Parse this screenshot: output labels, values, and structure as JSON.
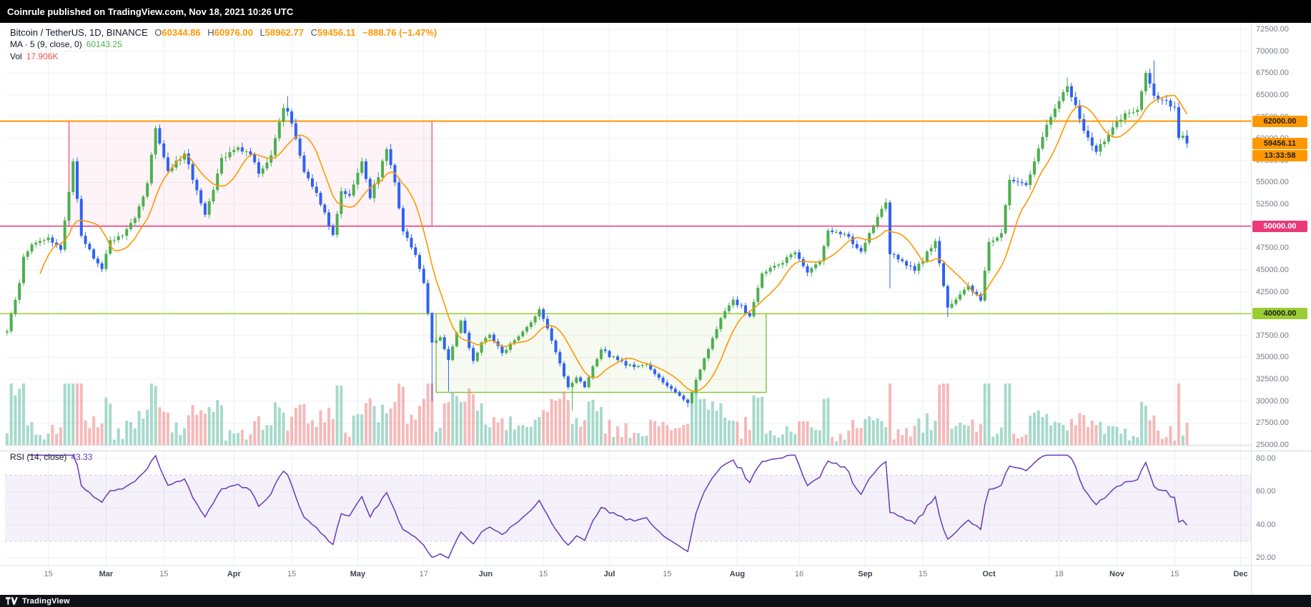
{
  "header": {
    "publish_text": "Coinrule published on TradingView.com, Nov 18, 2021 10:26 UTC"
  },
  "footer": {
    "brand": "TradingView"
  },
  "legend": {
    "symbol": "Bitcoin / TetherUS, 1D, BINANCE",
    "o_label": "O",
    "o_value": "60344.86",
    "h_label": "H",
    "h_value": "60976.00",
    "l_label": "L",
    "l_value": "58962.77",
    "c_label": "C",
    "c_value": "59456.11",
    "change": "−888.76 (−1.47%)",
    "ma_label": "MA · 5 (9, close, 0)",
    "ma_value": "60143.25",
    "vol_label": "Vol",
    "vol_value": "17.906K",
    "rsi_label": "RSI (14, close)",
    "rsi_value": "43.33"
  },
  "price_axis": {
    "ticks": [
      {
        "text": "72500.00",
        "price": 72500
      },
      {
        "text": "70000.00",
        "price": 70000
      },
      {
        "text": "67500.00",
        "price": 67500
      },
      {
        "text": "65000.00",
        "price": 65000
      },
      {
        "text": "62500.00",
        "price": 62500
      },
      {
        "text": "60000.00",
        "price": 60000
      },
      {
        "text": "57500.00",
        "price": 57500
      },
      {
        "text": "55000.00",
        "price": 55000
      },
      {
        "text": "52500.00",
        "price": 52500
      },
      {
        "text": "50000.00",
        "price": 50000
      },
      {
        "text": "47500.00",
        "price": 47500
      },
      {
        "text": "45000.00",
        "price": 45000
      },
      {
        "text": "42500.00",
        "price": 42500
      },
      {
        "text": "40000.00",
        "price": 40000
      },
      {
        "text": "37500.00",
        "price": 37500
      },
      {
        "text": "35000.00",
        "price": 35000
      },
      {
        "text": "32500.00",
        "price": 32500
      },
      {
        "text": "30000.00",
        "price": 30000
      },
      {
        "text": "27500.00",
        "price": 27500
      },
      {
        "text": "25000.00",
        "price": 25000
      }
    ],
    "badges": [
      {
        "text": "62000.00",
        "price": 62000,
        "bg": "#ff9800",
        "fg": "#1e1e1e"
      },
      {
        "text": "59456.11",
        "price": 59456.11,
        "bg": "#ff9800",
        "fg": "#1e1e1e",
        "countdown": "13:33:58"
      },
      {
        "text": "50000.00",
        "price": 50000,
        "bg": "#ea3979",
        "fg": "#ffffff"
      },
      {
        "text": "40000.00",
        "price": 40000,
        "bg": "#9acd32",
        "fg": "#1e1e1e"
      }
    ]
  },
  "rsi_axis": {
    "ticks": [
      {
        "text": "80.00",
        "value": 80
      },
      {
        "text": "60.00",
        "value": 60
      },
      {
        "text": "40.00",
        "value": 40
      },
      {
        "text": "20.00",
        "value": 20
      }
    ]
  },
  "time_axis": {
    "labels": [
      {
        "text": "15",
        "day": 10,
        "month": false
      },
      {
        "text": "Mar",
        "day": 24,
        "month": true
      },
      {
        "text": "15",
        "day": 38,
        "month": false
      },
      {
        "text": "Apr",
        "day": 55,
        "month": true
      },
      {
        "text": "15",
        "day": 69,
        "month": false
      },
      {
        "text": "May",
        "day": 85,
        "month": true
      },
      {
        "text": "17",
        "day": 101,
        "month": false
      },
      {
        "text": "Jun",
        "day": 116,
        "month": true
      },
      {
        "text": "15",
        "day": 130,
        "month": false
      },
      {
        "text": "Jul",
        "day": 146,
        "month": true
      },
      {
        "text": "15",
        "day": 160,
        "month": false
      },
      {
        "text": "Aug",
        "day": 177,
        "month": true
      },
      {
        "text": "16",
        "day": 192,
        "month": false
      },
      {
        "text": "Sep",
        "day": 208,
        "month": true
      },
      {
        "text": "15",
        "day": 222,
        "month": false
      },
      {
        "text": "Oct",
        "day": 238,
        "month": true
      },
      {
        "text": "18",
        "day": 255,
        "month": false
      },
      {
        "text": "Nov",
        "day": 269,
        "month": true
      },
      {
        "text": "15",
        "day": 283,
        "month": false
      },
      {
        "text": "Dec",
        "day": 299,
        "month": true
      }
    ]
  },
  "chart_data": {
    "type": "candlestick",
    "title": "Bitcoin / TetherUS, 1D, BINANCE",
    "interval": "1D",
    "exchange": "BINANCE",
    "price_range": [
      25000,
      72500
    ],
    "grid_step": 2500,
    "days_domain": [
      0,
      302
    ],
    "candle_count": 287,
    "up_color": "#4caf50",
    "down_color": "#2e62f4",
    "ma_color": "#ff9800",
    "vol_up_color": "rgba(109,194,168,0.6)",
    "vol_down_color": "rgba(240,139,139,0.6)",
    "rsi_color": "#673ab7",
    "rsi_band": [
      30,
      70
    ],
    "rsi_axis_range": [
      20,
      80
    ],
    "rsi_last": 43.33,
    "ma_period": 9,
    "rsi_period": 14,
    "levels": [
      {
        "price": 62000,
        "color": "#ff9800",
        "width": 2
      },
      {
        "price": 50000,
        "color": "#ea3979",
        "width": 1.5
      },
      {
        "price": 40000,
        "color": "#9acd32",
        "width": 1.5
      }
    ],
    "zones": [
      {
        "from_day": 15,
        "to_day": 103,
        "price_top": 62000,
        "price_bottom": 50000,
        "stroke": "#f06292",
        "fill": "rgba(240,98,146,0.07)"
      },
      {
        "from_day": 104,
        "to_day": 184,
        "price_top": 40000,
        "price_bottom": 31000,
        "stroke": "#8bc34a",
        "fill": "rgba(139,195,74,0.08)"
      }
    ],
    "close_keypoints": [
      [
        0,
        38000
      ],
      [
        3,
        43500
      ],
      [
        4,
        46500
      ],
      [
        6,
        47900
      ],
      [
        10,
        48700
      ],
      [
        13,
        47300
      ],
      [
        16,
        57400
      ],
      [
        18,
        48900
      ],
      [
        21,
        46300
      ],
      [
        23,
        45100
      ],
      [
        25,
        48400
      ],
      [
        28,
        48900
      ],
      [
        31,
        50900
      ],
      [
        34,
        54900
      ],
      [
        36,
        61200
      ],
      [
        39,
        56300
      ],
      [
        43,
        58300
      ],
      [
        46,
        54100
      ],
      [
        48,
        51300
      ],
      [
        52,
        57800
      ],
      [
        56,
        59000
      ],
      [
        59,
        58200
      ],
      [
        61,
        56000
      ],
      [
        64,
        58100
      ],
      [
        67,
        63500
      ],
      [
        68,
        63100
      ],
      [
        70,
        60000
      ],
      [
        72,
        56200
      ],
      [
        75,
        53800
      ],
      [
        79,
        49000
      ],
      [
        81,
        54000
      ],
      [
        83,
        53500
      ],
      [
        86,
        57400
      ],
      [
        88,
        53200
      ],
      [
        92,
        58800
      ],
      [
        94,
        55000
      ],
      [
        96,
        49400
      ],
      [
        99,
        46700
      ],
      [
        101,
        43500
      ],
      [
        103,
        36700
      ],
      [
        105,
        37300
      ],
      [
        107,
        34700
      ],
      [
        110,
        39200
      ],
      [
        113,
        34600
      ],
      [
        115,
        36700
      ],
      [
        117,
        37600
      ],
      [
        120,
        35500
      ],
      [
        124,
        37400
      ],
      [
        127,
        39000
      ],
      [
        129,
        40500
      ],
      [
        133,
        35600
      ],
      [
        136,
        31600
      ],
      [
        138,
        32700
      ],
      [
        140,
        31600
      ],
      [
        144,
        35900
      ],
      [
        148,
        34700
      ],
      [
        152,
        33900
      ],
      [
        155,
        34200
      ],
      [
        157,
        33100
      ],
      [
        161,
        31400
      ],
      [
        165,
        29800
      ],
      [
        168,
        33600
      ],
      [
        171,
        37200
      ],
      [
        173,
        39500
      ],
      [
        176,
        41600
      ],
      [
        180,
        39700
      ],
      [
        183,
        44600
      ],
      [
        187,
        45600
      ],
      [
        191,
        47000
      ],
      [
        194,
        44700
      ],
      [
        197,
        46000
      ],
      [
        199,
        49500
      ],
      [
        203,
        49100
      ],
      [
        207,
        47100
      ],
      [
        210,
        50000
      ],
      [
        213,
        52700
      ],
      [
        214,
        46800
      ],
      [
        217,
        46000
      ],
      [
        220,
        44900
      ],
      [
        225,
        48300
      ],
      [
        228,
        40700
      ],
      [
        231,
        42200
      ],
      [
        233,
        43200
      ],
      [
        236,
        41500
      ],
      [
        238,
        48200
      ],
      [
        241,
        49200
      ],
      [
        243,
        55300
      ],
      [
        247,
        54700
      ],
      [
        249,
        57400
      ],
      [
        252,
        61600
      ],
      [
        255,
        64300
      ],
      [
        257,
        66000
      ],
      [
        261,
        60900
      ],
      [
        264,
        58500
      ],
      [
        268,
        61300
      ],
      [
        271,
        62900
      ],
      [
        274,
        63300
      ],
      [
        276,
        67500
      ],
      [
        278,
        64900
      ],
      [
        280,
        64400
      ],
      [
        283,
        63600
      ],
      [
        284,
        60100
      ],
      [
        285,
        60344.86
      ],
      [
        286,
        59456.11
      ]
    ],
    "wick_lows": [
      {
        "day": 103,
        "low": 30000
      },
      {
        "day": 107,
        "low": 31100
      },
      {
        "day": 137,
        "low": 28900
      },
      {
        "day": 165,
        "low": 29300
      },
      {
        "day": 214,
        "low": 42900
      },
      {
        "day": 228,
        "low": 39600
      }
    ],
    "wick_highs": [
      {
        "day": 68,
        "high": 64854
      },
      {
        "day": 257,
        "high": 66990
      },
      {
        "day": 278,
        "high": 68950
      }
    ],
    "last_candle": {
      "day": 286,
      "open": 60344.86,
      "high": 60976.0,
      "low": 58962.77,
      "close": 59456.11
    }
  }
}
